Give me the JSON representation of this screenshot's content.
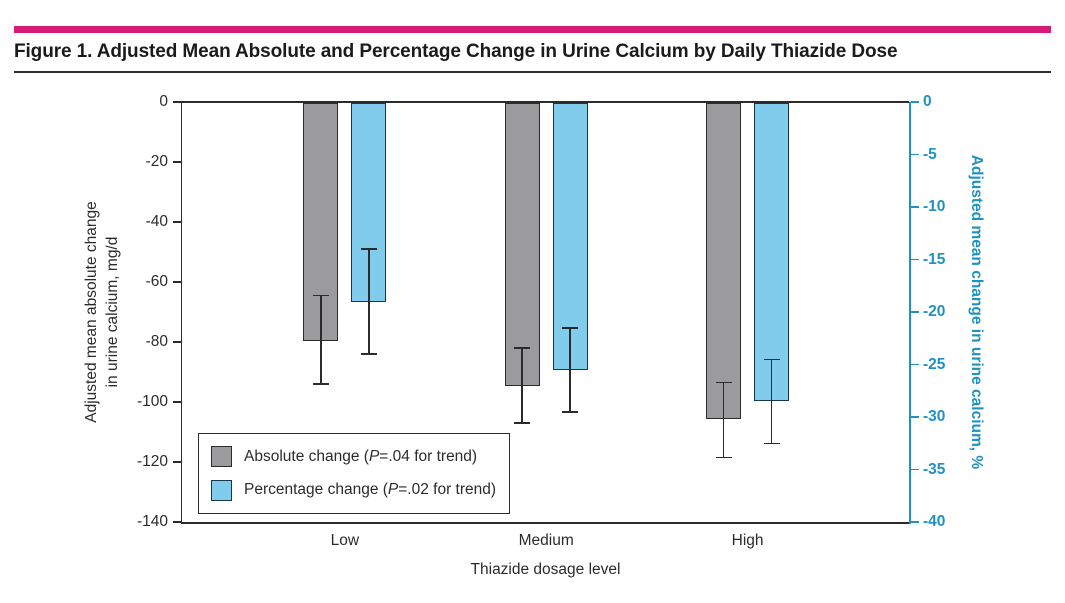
{
  "header": {
    "title": "Figure 1. Adjusted Mean Absolute and Percentage Change in Urine Calcium by Daily Thiazide Dose"
  },
  "colors": {
    "accent": "#d81b77",
    "text": "#1b1b1b",
    "axis": "#2b2b2b",
    "right_axis": "#2092c0",
    "gray_bar": "#9b9b9e",
    "blue_bar": "#81ccec"
  },
  "chart_data": {
    "type": "bar",
    "title": "Figure 1. Adjusted Mean Absolute and Percentage Change in Urine Calcium by Daily Thiazide Dose",
    "categories": [
      "Low",
      "Medium",
      "High"
    ],
    "xlabel": "Thiazide dosage level",
    "grid": false,
    "legend_position": "inside-bottom-left",
    "series": [
      {
        "key": "absolute-change",
        "name": "Absolute change",
        "axis": "left",
        "unit": "mg/d",
        "values": [
          -79.5,
          -94.5,
          -105.5
        ],
        "error_bars": [
          [
            -64.5,
            -94
          ],
          [
            -82,
            -107
          ],
          [
            -93.5,
            -118.5
          ]
        ],
        "color": "#9b9b9e",
        "border_color": "#2b2b2b"
      },
      {
        "key": "percentage-change",
        "name": "Percentage change",
        "axis": "right",
        "unit": "%",
        "values": [
          -19,
          -25.5,
          -28.5
        ],
        "error_bars": [
          [
            -14,
            -24
          ],
          [
            -21.5,
            -29.5
          ],
          [
            -24.5,
            -32.5
          ]
        ],
        "color": "#81ccec",
        "border_color": "#16384a"
      }
    ],
    "left_axis": {
      "label_lines": [
        "Adjusted mean absolute change",
        "in urine calcium, mg/d"
      ],
      "ticks": [
        0,
        -20,
        -40,
        -60,
        -80,
        -100,
        -120,
        -140
      ],
      "max": 0,
      "min": -140
    },
    "right_axis": {
      "label": "Adjusted mean change in urine calcium, %",
      "ticks": [
        0,
        -5,
        -10,
        -15,
        -20,
        -25,
        -30,
        -35,
        -40
      ],
      "max": 0,
      "min": -40,
      "color": "#2092c0"
    },
    "legend": [
      {
        "pre": "Absolute change (",
        "italic": "P",
        "post": "=.04 for trend)",
        "swatch": "#9b9b9e",
        "swatch_border": "#2b2b2b"
      },
      {
        "pre": "Percentage change (",
        "italic": "P",
        "post": "=.02 for trend)",
        "swatch": "#81ccec",
        "swatch_border": "#16384a"
      }
    ]
  }
}
